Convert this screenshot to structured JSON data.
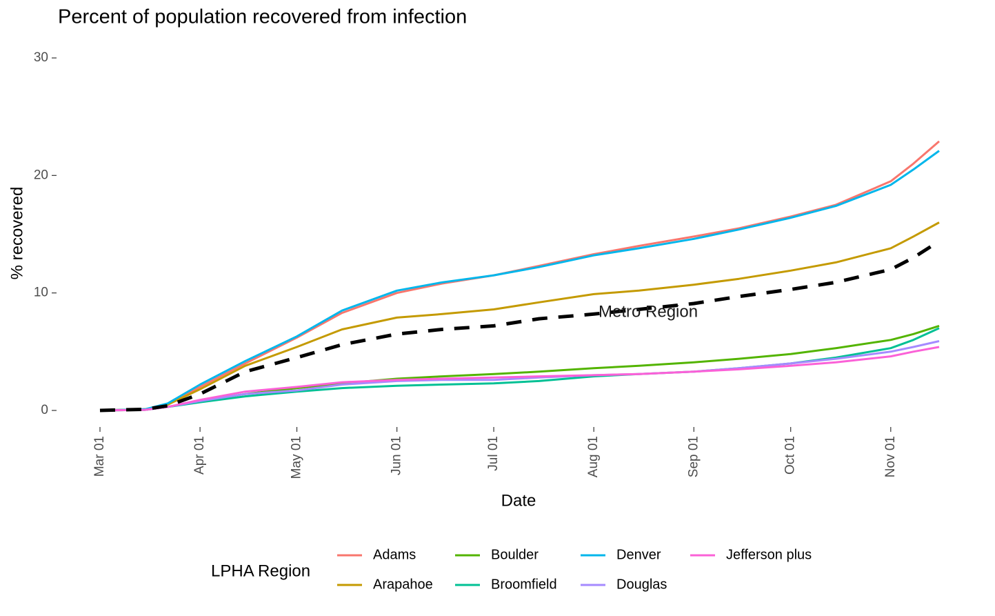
{
  "chart_data": {
    "type": "line",
    "title": "Percent of population recovered from infection",
    "x_label": "Date",
    "y_label": "% recovered",
    "x": [
      "Mar 01",
      "Mar 15",
      "Mar 22",
      "Apr 01",
      "Apr 15",
      "May 01",
      "May 15",
      "Jun 01",
      "Jun 15",
      "Jul 01",
      "Jul 15",
      "Aug 01",
      "Aug 15",
      "Sep 01",
      "Sep 15",
      "Oct 01",
      "Oct 15",
      "Nov 01",
      "Nov 08",
      "Nov 16"
    ],
    "xlim": [
      "Mar 01",
      "Nov 16"
    ],
    "xticks": [
      "Mar 01",
      "Apr 01",
      "May 01",
      "Jun 01",
      "Jul 01",
      "Aug 01",
      "Sep 01",
      "Oct 01",
      "Nov 01"
    ],
    "ylim": [
      0,
      30
    ],
    "yticks": [
      0,
      10,
      20,
      30
    ],
    "legend_title": "LPHA Region",
    "series": [
      {
        "name": "Adams",
        "color": "#F8766D",
        "values": [
          0,
          0.1,
          0.5,
          2.0,
          4.0,
          6.2,
          8.3,
          10.0,
          10.8,
          11.5,
          12.3,
          13.3,
          14.0,
          14.8,
          15.5,
          16.5,
          17.5,
          19.5,
          21.0,
          22.9
        ]
      },
      {
        "name": "Arapahoe",
        "color": "#C49A00",
        "values": [
          0,
          0.1,
          0.5,
          1.8,
          3.8,
          5.4,
          6.9,
          7.9,
          8.2,
          8.6,
          9.2,
          9.9,
          10.2,
          10.7,
          11.2,
          11.9,
          12.6,
          13.8,
          14.8,
          16.0
        ]
      },
      {
        "name": "Boulder",
        "color": "#53B400",
        "values": [
          0,
          0.05,
          0.3,
          0.8,
          1.4,
          1.9,
          2.3,
          2.7,
          2.9,
          3.1,
          3.3,
          3.6,
          3.8,
          4.1,
          4.4,
          4.8,
          5.3,
          6.0,
          6.5,
          7.2
        ]
      },
      {
        "name": "Broomfield",
        "color": "#00C094",
        "values": [
          0,
          0.05,
          0.3,
          0.7,
          1.2,
          1.6,
          1.9,
          2.1,
          2.2,
          2.3,
          2.5,
          2.9,
          3.1,
          3.3,
          3.6,
          4.0,
          4.5,
          5.3,
          6.0,
          7.0
        ]
      },
      {
        "name": "Denver",
        "color": "#00B6EB",
        "values": [
          0,
          0.1,
          0.6,
          2.2,
          4.2,
          6.3,
          8.5,
          10.2,
          10.9,
          11.5,
          12.2,
          13.2,
          13.8,
          14.6,
          15.4,
          16.4,
          17.4,
          19.2,
          20.5,
          22.1
        ]
      },
      {
        "name": "Douglas",
        "color": "#A58AFF",
        "values": [
          0,
          0.05,
          0.3,
          0.8,
          1.4,
          1.7,
          2.2,
          2.5,
          2.6,
          2.6,
          2.8,
          3.0,
          3.1,
          3.3,
          3.6,
          4.0,
          4.4,
          5.0,
          5.4,
          5.9
        ]
      },
      {
        "name": "Jefferson plus",
        "color": "#FB61D7",
        "values": [
          0,
          0.05,
          0.3,
          0.9,
          1.6,
          2.0,
          2.4,
          2.6,
          2.7,
          2.8,
          2.9,
          3.0,
          3.1,
          3.3,
          3.5,
          3.8,
          4.1,
          4.6,
          5.0,
          5.4
        ]
      }
    ],
    "reference": {
      "name": "Metro Region",
      "color": "#000000",
      "dashed": true,
      "values": [
        0,
        0.1,
        0.4,
        1.4,
        3.3,
        4.5,
        5.6,
        6.5,
        6.9,
        7.2,
        7.8,
        8.2,
        8.6,
        9.1,
        9.7,
        10.3,
        10.9,
        12.0,
        13.0,
        14.4
      ]
    }
  }
}
